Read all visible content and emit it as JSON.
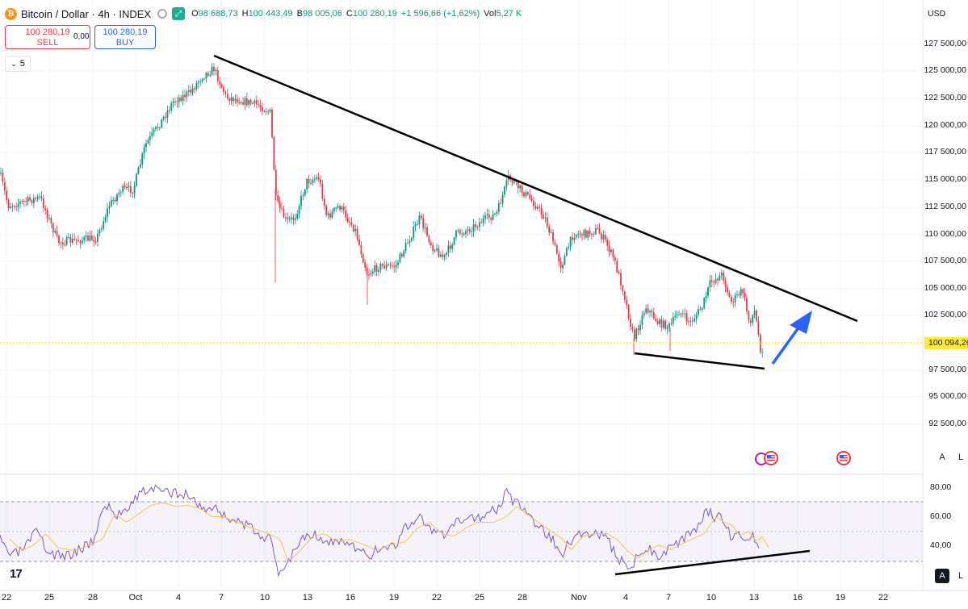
{
  "header": {
    "symbol_icon": "bitcoin-icon",
    "title": "Bitcoin / Dollar · 4h · INDEX",
    "ohlc": [
      {
        "key": "O",
        "value": "98 688,73"
      },
      {
        "key": "H",
        "value": "100 443,49"
      },
      {
        "key": "B",
        "value": "98 005,06"
      },
      {
        "key": "C",
        "value": "100 280,19"
      },
      {
        "key": "",
        "value": "+1 596,66 (+1,62%)"
      },
      {
        "key": "Vol",
        "value": "5,27 K"
      }
    ]
  },
  "trade": {
    "sell_price": "100 280,19",
    "sell_label": "SELL",
    "spread": "0,00",
    "buy_price": "100 280,19",
    "buy_label": "BUY"
  },
  "interval_toggle": "5",
  "price_axis": {
    "currency": "USD",
    "labels": [
      "127 500,00",
      "125 000,00",
      "122 500,00",
      "120 000,00",
      "117 500,00",
      "115 000,00",
      "112 500,00",
      "110 000,00",
      "107 500,00",
      "105 000,00",
      "102 500,00",
      "97 500,00",
      "95 000,00",
      "92 500,00"
    ],
    "current_price": "100 094,26"
  },
  "rsi_axis": {
    "labels": [
      "80,00",
      "60,00",
      "40,00"
    ]
  },
  "time_axis": {
    "labels": [
      "22",
      "25",
      "28",
      "Oct",
      "4",
      "7",
      "10",
      "13",
      "16",
      "19",
      "22",
      "25",
      "28",
      "Nov",
      "4",
      "7",
      "10",
      "13",
      "16",
      "19",
      "22"
    ]
  },
  "scale_buttons": {
    "auto": "A",
    "log": "L"
  },
  "logo": "17",
  "colors": {
    "up": "#089981",
    "down": "#f23645",
    "trendline": "#000000",
    "arrow": "#2962ff",
    "rsi_line": "#7e57c2",
    "rsi_ma": "#f7c548",
    "price_line": "#f7e600"
  }
}
